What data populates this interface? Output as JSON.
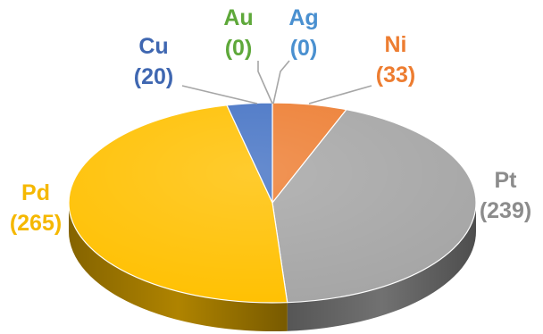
{
  "chart_data": {
    "type": "pie",
    "style": "3d",
    "slices": [
      {
        "name": "Ni",
        "value": 33,
        "value_text": "(33)",
        "color": "#ed7d31"
      },
      {
        "name": "Pt",
        "value": 239,
        "value_text": "(239)",
        "color": "#a5a5a5"
      },
      {
        "name": "Pd",
        "value": 265,
        "value_text": "(265)",
        "color": "#ffc000"
      },
      {
        "name": "Cu",
        "value": 20,
        "value_text": "(20)",
        "color": "#4472c4"
      },
      {
        "name": "Au",
        "value": 0,
        "value_text": "(0)",
        "color": "#70ad47"
      },
      {
        "name": "Ag",
        "value": 0,
        "value_text": "(0)",
        "color": "#5b9bd5"
      }
    ],
    "label_colors": {
      "Ni": "#ed7d31",
      "Pt": "#8c8c8c",
      "Pd": "#f5b800",
      "Cu": "#3f67b1",
      "Au": "#5ea83a",
      "Ag": "#4a90d0"
    },
    "start_direction": "top",
    "legend": "none"
  }
}
